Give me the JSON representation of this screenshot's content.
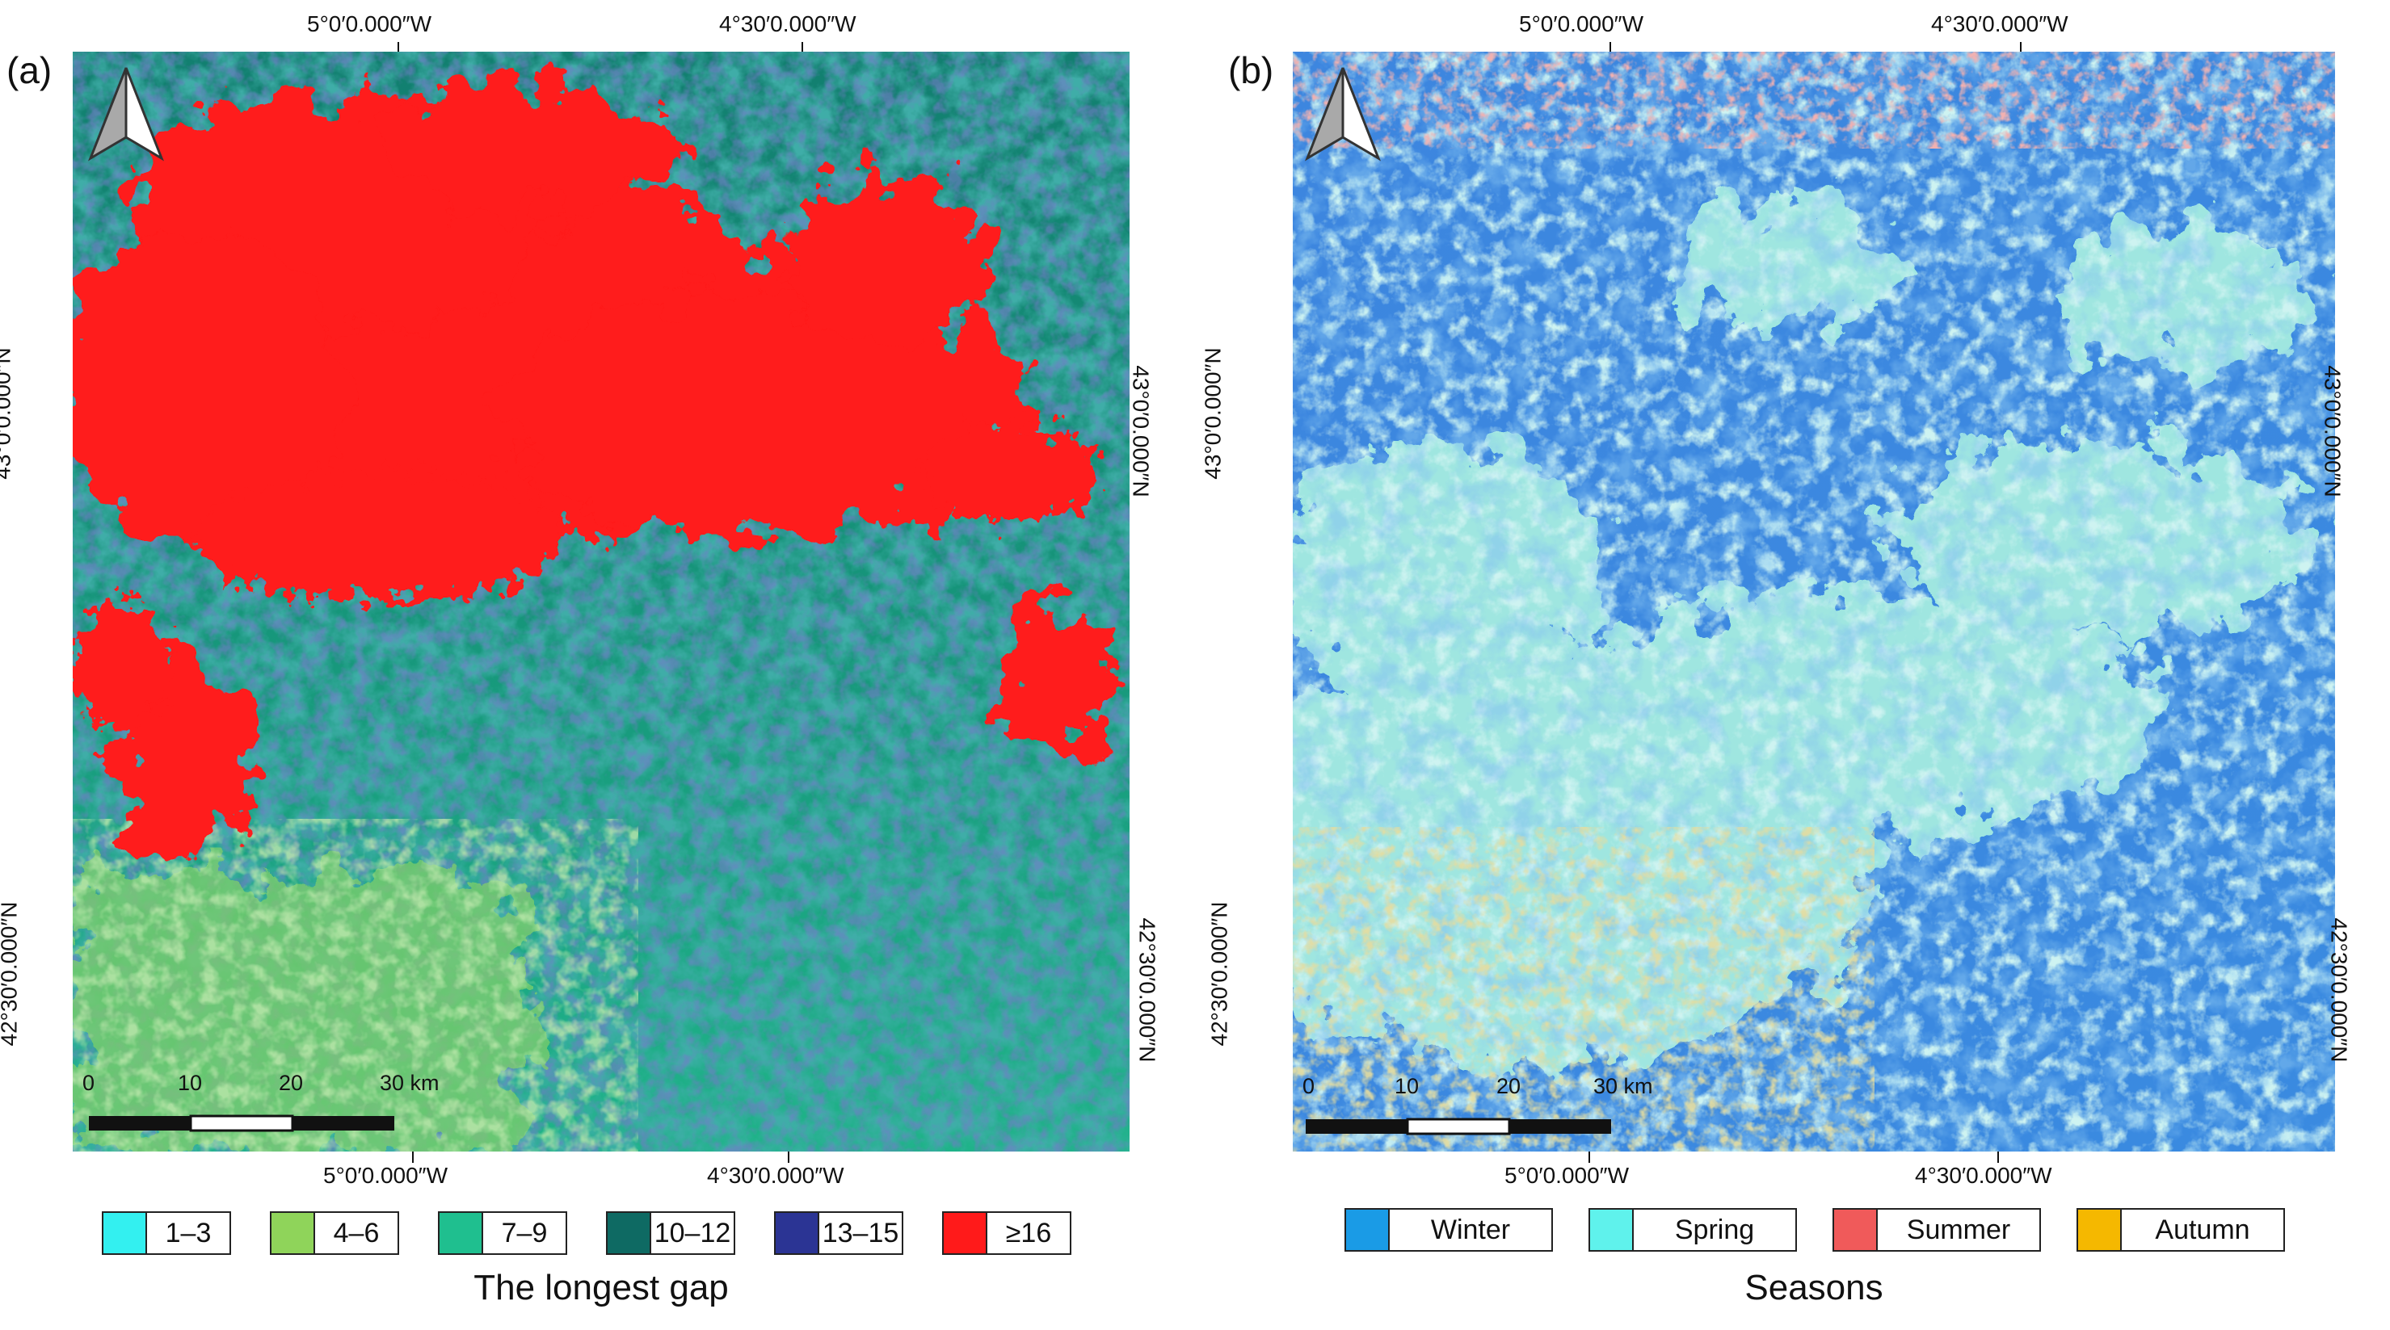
{
  "panels": [
    {
      "letter": "(a)",
      "top_coords": [
        "5°0′0.000″W",
        "4°30′0.000″W"
      ],
      "bottom_coords": [
        "5°0′0.000″W",
        "4°30′0.000″W"
      ],
      "left_coords": [
        "43°0′0.000″N",
        "42°30′0.000″N"
      ],
      "right_coords": [
        "43°0′0.000″N",
        "42°30′0.000″N"
      ],
      "scale_labels": [
        "0",
        "10",
        "20",
        "30 km"
      ],
      "legend": [
        {
          "label": "1–3",
          "color": "#33f0f0"
        },
        {
          "label": "4–6",
          "color": "#8fd45a"
        },
        {
          "label": "7–9",
          "color": "#1fbf8f"
        },
        {
          "label": "10–12",
          "color": "#0e6a63"
        },
        {
          "label": "13–15",
          "color": "#2b3494"
        },
        {
          "label": "≥16",
          "color": "#ff1a1a"
        }
      ],
      "caption": "The longest gap"
    },
    {
      "letter": "(b)",
      "top_coords": [
        "5°0′0.000″W",
        "4°30′0.000″W"
      ],
      "bottom_coords": [
        "5°0′0.000″W",
        "4°30′0.000″W"
      ],
      "left_coords": [
        "43°0′0.000″N",
        "42°30′0.000″N"
      ],
      "right_coords": [
        "43°0′0.000″N",
        "42°30′0.000″N"
      ],
      "scale_labels": [
        "0",
        "10",
        "20",
        "30 km"
      ],
      "legend": [
        {
          "label": "Winter",
          "color": "#1a9be6"
        },
        {
          "label": "Spring",
          "color": "#5ff2ec"
        },
        {
          "label": "Summer",
          "color": "#f05a5a"
        },
        {
          "label": "Autumn",
          "color": "#f5b800"
        }
      ],
      "caption": "Seasons"
    }
  ],
  "map_colors": {
    "a_background": "#1aa77e",
    "a_dark": "#0e6a63",
    "a_blue": "#2b3494",
    "a_light": "#7fcf6a",
    "a_red": "#ff1a1a",
    "a_darkred": "#c0202a",
    "b_background": "#3a8ae0",
    "b_spring": "#9fe6e0",
    "b_summer": "#e07070",
    "b_autumn": "#c8b85a"
  }
}
